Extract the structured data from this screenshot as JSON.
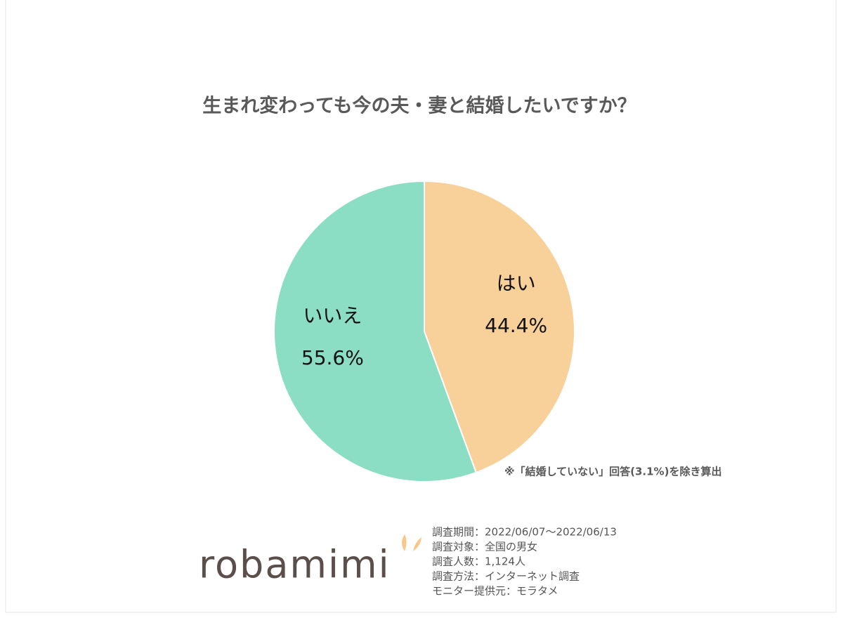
{
  "chart_data": {
    "type": "pie",
    "title": "生まれ変わっても今の夫・妻と結婚したいですか？",
    "categories": [
      "はい",
      "いいえ"
    ],
    "values": [
      44.4,
      55.6
    ],
    "value_labels": [
      "44.4%",
      "55.6%"
    ],
    "colors": [
      "#f8d09a",
      "#8bdec3"
    ],
    "note": "※「結婚していない」回答(3.1%)を除き算出",
    "survey_info": [
      "調査期間：2022/06/07～2022/06/13",
      "調査対象：全国の男女",
      "調査人数：1,124人",
      "調査方法：インターネット調査",
      "モニター提供元：モラタメ"
    ],
    "logo": "robamimi"
  }
}
